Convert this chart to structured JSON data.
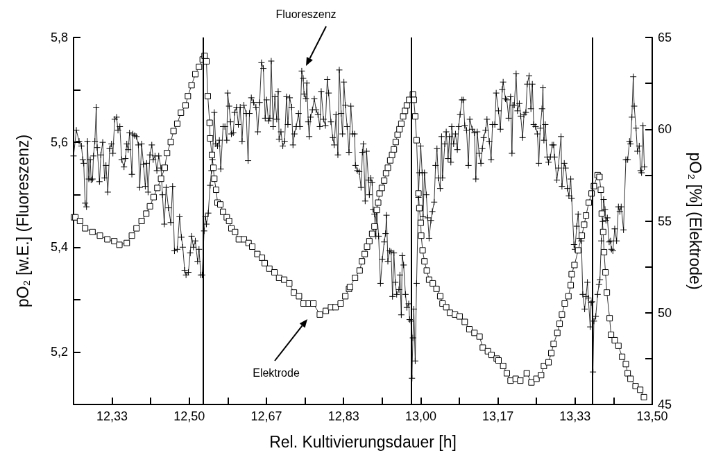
{
  "chart_data": {
    "type": "line",
    "xlabel": "Rel. Kultivierungsdauer [h]",
    "ylabel": "pO₂ [w.E.] (Fluoreszenz)",
    "y2label": "pO₂ [%] (Elektrode)",
    "xlim": [
      12.25,
      13.5
    ],
    "xticks": [
      {
        "value": 12.3333,
        "label": "12,33"
      },
      {
        "value": 12.4167,
        "label": null
      },
      {
        "value": 12.5,
        "label": "12,50"
      },
      {
        "value": 12.5833,
        "label": null
      },
      {
        "value": 12.6667,
        "label": "12,67"
      },
      {
        "value": 12.75,
        "label": null
      },
      {
        "value": 12.8333,
        "label": "12,83"
      },
      {
        "value": 12.9167,
        "label": null
      },
      {
        "value": 13.0,
        "label": "13,00"
      },
      {
        "value": 13.0833,
        "label": null
      },
      {
        "value": 13.1667,
        "label": "13,17"
      },
      {
        "value": 13.25,
        "label": null
      },
      {
        "value": 13.3333,
        "label": "13,33"
      },
      {
        "value": 13.4167,
        "label": null
      },
      {
        "value": 13.5,
        "label": "13,50"
      }
    ],
    "ylim": [
      5.1,
      5.8
    ],
    "yticks": [
      {
        "value": 5.2,
        "label": "5,2"
      },
      {
        "value": 5.3,
        "label": null
      },
      {
        "value": 5.4,
        "label": "5,4"
      },
      {
        "value": 5.5,
        "label": null
      },
      {
        "value": 5.6,
        "label": "5,6"
      },
      {
        "value": 5.7,
        "label": null
      },
      {
        "value": 5.8,
        "label": "5,8"
      }
    ],
    "y2lim": [
      45,
      65
    ],
    "y2ticks": [
      45,
      {
        "value": 47.5,
        "label": null
      },
      50,
      {
        "value": 52.5,
        "label": null
      },
      55,
      {
        "value": 57.5,
        "label": null
      },
      60,
      {
        "value": 62.5,
        "label": null
      },
      65
    ],
    "ref_lines": [
      {
        "axis": "x",
        "value": 12.526,
        "color": "#000000"
      },
      {
        "axis": "x",
        "value": 12.982,
        "color": "#000000"
      },
      {
        "axis": "x",
        "value": 13.374,
        "color": "#000000"
      }
    ],
    "annotations": [
      "Fluoreszenz",
      "Elektrode"
    ],
    "series": [
      {
        "marker": "cross",
        "color": "#000000",
        "x": [
          12.25,
          12.256,
          12.262,
          12.267,
          12.27,
          12.272,
          12.275,
          12.278,
          12.28,
          12.283,
          12.286,
          12.288,
          12.291,
          12.293,
          12.296,
          12.299,
          12.301,
          12.306,
          12.309,
          12.313,
          12.317,
          12.32,
          12.324,
          12.328,
          12.332,
          12.335,
          12.339,
          12.343,
          12.346,
          12.35,
          12.354,
          12.359,
          12.362,
          12.365,
          12.368,
          12.371,
          12.376,
          12.378,
          12.382,
          12.386,
          12.39,
          12.393,
          12.397,
          12.401,
          12.405,
          12.408,
          12.411,
          12.415,
          12.419,
          12.422,
          12.426,
          12.43,
          12.434,
          12.439,
          12.442,
          12.446,
          12.45,
          12.455,
          12.46,
          12.464,
          12.468,
          12.474,
          12.479,
          12.483,
          12.486,
          12.49,
          12.493,
          12.498,
          12.502,
          12.505,
          12.509,
          12.513,
          12.518,
          12.521,
          12.525,
          12.528,
          12.532,
          12.535,
          12.537,
          12.541,
          12.545,
          12.548,
          12.55,
          12.554,
          12.557,
          12.561,
          12.565,
          12.568,
          12.573,
          12.577,
          12.581,
          12.583,
          12.586,
          12.589,
          12.591,
          12.595,
          12.598,
          12.602,
          12.606,
          12.61,
          12.614,
          12.618,
          12.623,
          12.627,
          12.63,
          12.634,
          12.639,
          12.644,
          12.648,
          12.652,
          12.656,
          12.66,
          12.664,
          12.667,
          12.671,
          12.674,
          12.677,
          12.681,
          12.685,
          12.689,
          12.692,
          12.694,
          12.698,
          12.702,
          12.706,
          12.71,
          12.713,
          12.717,
          12.721,
          12.724,
          12.727,
          12.731,
          12.736,
          12.739,
          12.743,
          12.746,
          12.748,
          12.752,
          12.754,
          12.757,
          12.759,
          12.762,
          12.766,
          12.77,
          12.774,
          12.778,
          12.782,
          12.785,
          12.79,
          12.794,
          12.798,
          12.801,
          12.806,
          12.81,
          12.813,
          12.817,
          12.821,
          12.824,
          12.828,
          12.831,
          12.834,
          12.837,
          12.841,
          12.845,
          12.849,
          12.853,
          12.857,
          12.859,
          12.863,
          12.867,
          12.871,
          12.874,
          12.876,
          12.88,
          12.883,
          12.887,
          12.889,
          12.892,
          12.895,
          12.897,
          12.9,
          12.903,
          12.905,
          12.909,
          12.913,
          12.917,
          12.921,
          12.924,
          12.926,
          12.929,
          12.933,
          12.936,
          12.939,
          12.942,
          12.945,
          12.948,
          12.953,
          12.955,
          12.958,
          12.96,
          12.963,
          12.967,
          12.97,
          12.974,
          12.976,
          12.979,
          12.981,
          12.983,
          12.985,
          12.988,
          12.991,
          12.995,
          12.997,
          13.0,
          13.003,
          13.005,
          13.008,
          13.012,
          13.015,
          13.018,
          13.022,
          13.025,
          13.029,
          13.032,
          13.035,
          13.038,
          13.042,
          13.045,
          13.047,
          13.052,
          13.055,
          13.059,
          13.062,
          13.065,
          13.067,
          13.071,
          13.075,
          13.079,
          13.082,
          13.085,
          13.089,
          13.092,
          13.095,
          13.099,
          13.103,
          13.106,
          13.111,
          13.116,
          13.119,
          13.122,
          13.126,
          13.13,
          13.133,
          13.136,
          13.14,
          13.143,
          13.148,
          13.152,
          13.155,
          13.16,
          13.163,
          13.168,
          13.172,
          13.176,
          13.178,
          13.183,
          13.186,
          13.19,
          13.194,
          13.197,
          13.199,
          13.202,
          13.206,
          13.209,
          13.213,
          13.216,
          13.22,
          13.223,
          13.227,
          13.23,
          13.234,
          13.238,
          13.241,
          13.244,
          13.248,
          13.252,
          13.255,
          13.258,
          13.262,
          13.264,
          13.266,
          13.269,
          13.273,
          13.276,
          13.28,
          13.284,
          13.287,
          13.289,
          13.294,
          13.297,
          13.303,
          13.305,
          13.31,
          13.313,
          13.317,
          13.32,
          13.324,
          13.326,
          13.331,
          13.333,
          13.337,
          13.34,
          13.343,
          13.347,
          13.35,
          13.354,
          13.357,
          13.36,
          13.362,
          13.366,
          13.368,
          13.37,
          13.372,
          13.374,
          13.378,
          13.382,
          13.385,
          13.387,
          13.39,
          13.393,
          13.395,
          13.398,
          13.4,
          13.403,
          13.407,
          13.41,
          13.412,
          13.415,
          13.419,
          13.423,
          13.427,
          13.43,
          13.433,
          13.438,
          13.443,
          13.447,
          13.451,
          13.453,
          13.456,
          13.459,
          13.461,
          13.465,
          13.468,
          13.472,
          13.475,
          13.477,
          13.48,
          13.483
        ],
        "values": [
          5.574,
          5.623,
          5.602,
          5.593,
          5.567,
          5.56,
          5.484,
          5.477,
          5.602,
          5.53,
          5.567,
          5.528,
          5.53,
          5.574,
          5.602,
          5.667,
          5.59,
          5.525,
          5.576,
          5.6,
          5.532,
          5.556,
          5.505,
          5.588,
          5.597,
          5.579,
          5.644,
          5.648,
          5.623,
          5.63,
          5.567,
          5.553,
          5.569,
          5.597,
          5.586,
          5.618,
          5.539,
          5.616,
          5.613,
          5.611,
          5.595,
          5.514,
          5.597,
          5.558,
          5.516,
          5.56,
          5.505,
          5.576,
          5.595,
          5.567,
          5.574,
          5.546,
          5.574,
          5.551,
          5.5,
          5.444,
          5.514,
          5.475,
          5.447,
          5.516,
          5.393,
          5.396,
          5.458,
          5.419,
          5.4,
          5.356,
          5.347,
          5.352,
          5.389,
          5.421,
          5.4,
          5.412,
          5.373,
          5.396,
          5.347,
          5.347,
          5.431,
          5.458,
          5.444,
          5.465,
          5.518,
          5.546,
          5.567,
          5.657,
          5.597,
          5.593,
          5.604,
          5.549,
          5.63,
          5.63,
          5.604,
          5.694,
          5.669,
          5.639,
          5.616,
          5.618,
          5.657,
          5.667,
          5.634,
          5.667,
          5.602,
          5.671,
          5.655,
          5.565,
          5.655,
          5.685,
          5.676,
          5.667,
          5.62,
          5.676,
          5.752,
          5.741,
          5.646,
          5.681,
          5.641,
          5.646,
          5.755,
          5.63,
          5.687,
          5.644,
          5.697,
          5.606,
          5.62,
          5.593,
          5.602,
          5.687,
          5.634,
          5.685,
          5.667,
          5.595,
          5.616,
          5.63,
          5.655,
          5.63,
          5.736,
          5.722,
          5.692,
          5.683,
          5.713,
          5.639,
          5.611,
          5.648,
          5.662,
          5.683,
          5.662,
          5.653,
          5.63,
          5.697,
          5.644,
          5.632,
          5.72,
          5.694,
          5.639,
          5.609,
          5.595,
          5.653,
          5.576,
          5.738,
          5.655,
          5.616,
          5.715,
          5.671,
          5.63,
          5.581,
          5.669,
          5.616,
          5.616,
          5.556,
          5.546,
          5.544,
          5.514,
          5.581,
          5.597,
          5.488,
          5.583,
          5.528,
          5.5,
          5.532,
          5.523,
          5.472,
          5.463,
          5.421,
          5.472,
          5.421,
          5.331,
          5.377,
          5.41,
          5.426,
          5.461,
          5.373,
          5.393,
          5.391,
          5.306,
          5.389,
          5.333,
          5.31,
          5.319,
          5.347,
          5.271,
          5.384,
          5.366,
          5.31,
          5.285,
          5.292,
          5.262,
          5.259,
          5.15,
          5.227,
          5.282,
          5.183,
          5.331,
          5.495,
          5.542,
          5.593,
          5.542,
          5.458,
          5.542,
          5.5,
          5.456,
          5.417,
          5.451,
          5.468,
          5.486,
          5.556,
          5.588,
          5.532,
          5.512,
          5.611,
          5.532,
          5.597,
          5.62,
          5.569,
          5.611,
          5.562,
          5.63,
          5.597,
          5.616,
          5.586,
          5.63,
          5.653,
          5.681,
          5.681,
          5.632,
          5.623,
          5.556,
          5.644,
          5.625,
          5.618,
          5.53,
          5.62,
          5.579,
          5.56,
          5.588,
          5.609,
          5.623,
          5.644,
          5.602,
          5.567,
          5.634,
          5.634,
          5.694,
          5.66,
          5.625,
          5.701,
          5.715,
          5.683,
          5.681,
          5.646,
          5.687,
          5.579,
          5.671,
          5.671,
          5.731,
          5.66,
          5.674,
          5.65,
          5.609,
          5.653,
          5.657,
          5.711,
          5.727,
          5.664,
          5.711,
          5.634,
          5.63,
          5.616,
          5.56,
          5.627,
          5.664,
          5.704,
          5.604,
          5.634,
          5.572,
          5.562,
          5.572,
          5.595,
          5.595,
          5.572,
          5.528,
          5.551,
          5.611,
          5.516,
          5.56,
          5.551,
          5.512,
          5.498,
          5.53,
          5.493,
          5.405,
          5.396,
          5.44,
          5.463,
          5.417,
          5.412,
          5.31,
          5.282,
          5.306,
          5.333,
          5.303,
          5.248,
          5.294,
          5.296,
          5.162,
          5.259,
          5.268,
          5.31,
          5.329,
          5.338,
          5.412,
          5.449,
          5.491,
          5.472,
          5.451,
          5.456,
          5.41,
          5.412,
          5.396,
          5.393,
          5.435,
          5.412,
          5.477,
          5.468,
          5.477,
          5.433,
          5.567,
          5.567,
          5.602,
          5.597,
          5.648,
          5.725,
          5.669,
          5.627,
          5.583,
          5.593,
          5.546,
          5.542,
          5.632,
          5.553
        ]
      },
      {
        "marker": "square",
        "color": "#000000",
        "axis": "y2",
        "x": [
          12.251,
          12.254,
          12.264,
          12.275,
          12.291,
          12.307,
          12.323,
          12.338,
          12.349,
          12.365,
          12.376,
          12.386,
          12.397,
          12.407,
          12.415,
          12.423,
          12.431,
          12.439,
          12.447,
          12.452,
          12.46,
          12.466,
          12.474,
          12.482,
          12.492,
          12.497,
          12.505,
          12.513,
          12.521,
          12.529,
          12.533,
          12.537,
          12.54,
          12.544,
          12.545,
          12.549,
          12.552,
          12.554,
          12.558,
          12.561,
          12.567,
          12.573,
          12.581,
          12.586,
          12.591,
          12.599,
          12.607,
          12.618,
          12.628,
          12.636,
          12.647,
          12.657,
          12.663,
          12.673,
          12.684,
          12.694,
          12.705,
          12.716,
          12.726,
          12.737,
          12.747,
          12.758,
          12.768,
          12.782,
          12.795,
          12.806,
          12.816,
          12.827,
          12.837,
          12.845,
          12.847,
          12.858,
          12.868,
          12.873,
          12.879,
          12.884,
          12.889,
          12.895,
          12.9,
          12.905,
          12.908,
          12.911,
          12.916,
          12.921,
          12.925,
          12.929,
          12.934,
          12.938,
          12.942,
          12.946,
          12.95,
          12.954,
          12.958,
          12.962,
          12.966,
          12.97,
          12.975,
          12.983,
          12.985,
          12.988,
          12.991,
          12.995,
          12.997,
          13.0,
          13.001,
          13.004,
          13.008,
          13.013,
          13.018,
          13.026,
          13.034,
          13.042,
          13.047,
          13.055,
          13.063,
          13.074,
          13.084,
          13.095,
          13.105,
          13.116,
          13.127,
          13.134,
          13.145,
          13.153,
          13.164,
          13.168,
          13.178,
          13.186,
          13.194,
          13.205,
          13.215,
          13.229,
          13.239,
          13.25,
          13.26,
          13.266,
          13.276,
          13.282,
          13.287,
          13.295,
          13.3,
          13.305,
          13.311,
          13.319,
          13.324,
          13.326,
          13.332,
          13.34,
          13.348,
          13.353,
          13.357,
          13.363,
          13.369,
          13.374,
          13.382,
          13.386,
          13.389,
          13.391,
          13.394,
          13.396,
          13.399,
          13.402,
          13.408,
          13.411,
          13.419,
          13.427,
          13.435,
          13.443,
          13.447,
          13.453,
          13.464,
          13.474,
          13.482
        ],
        "values": [
          55.2,
          55.2,
          55.0,
          54.6,
          54.4,
          54.2,
          54.0,
          53.9,
          53.7,
          53.8,
          54.2,
          54.6,
          55.0,
          55.4,
          55.8,
          56.3,
          56.8,
          57.3,
          57.9,
          58.7,
          59.3,
          59.9,
          60.3,
          60.9,
          61.3,
          61.8,
          62.4,
          63.0,
          63.4,
          63.8,
          64.0,
          63.7,
          61.8,
          60.35,
          59.5,
          58.6,
          57.9,
          57.3,
          56.7,
          56.0,
          55.9,
          55.5,
          55.2,
          55.0,
          54.6,
          54.4,
          54.0,
          54.0,
          53.8,
          53.6,
          53.2,
          53.0,
          52.7,
          52.4,
          52.2,
          51.9,
          51.8,
          51.6,
          51.1,
          50.9,
          50.5,
          50.5,
          50.5,
          49.9,
          50.1,
          50.3,
          50.3,
          50.5,
          50.9,
          51.3,
          51.4,
          51.9,
          52.3,
          52.8,
          53.2,
          53.6,
          53.9,
          54.3,
          54.7,
          55.6,
          56.0,
          56.5,
          56.8,
          57.2,
          57.6,
          57.9,
          58.3,
          58.6,
          58.9,
          59.3,
          59.7,
          60.0,
          60.3,
          60.7,
          61.0,
          61.3,
          61.6,
          61.9,
          61.6,
          60.7,
          59.4,
          56.5,
          55.7,
          54.9,
          54.2,
          53.4,
          52.8,
          52.3,
          51.8,
          51.6,
          51.3,
          50.9,
          50.5,
          50.3,
          50.0,
          49.9,
          49.8,
          49.5,
          49.1,
          48.9,
          48.7,
          48.1,
          47.9,
          47.7,
          47.5,
          47.4,
          47.1,
          46.7,
          46.3,
          46.4,
          46.3,
          46.7,
          46.2,
          46.4,
          46.6,
          47.1,
          47.3,
          47.8,
          48.3,
          48.9,
          49.4,
          49.9,
          50.5,
          50.9,
          51.5,
          52.1,
          52.6,
          53.4,
          54.2,
          54.8,
          55.3,
          56.0,
          56.5,
          56.9,
          57.5,
          57.4,
          56.7,
          55.4,
          54.4,
          53.3,
          52.2,
          51.1,
          49.7,
          48.8,
          48.5,
          48.2,
          47.6,
          47.2,
          46.7,
          46.4,
          46.0,
          45.8,
          45.4
        ]
      }
    ]
  }
}
